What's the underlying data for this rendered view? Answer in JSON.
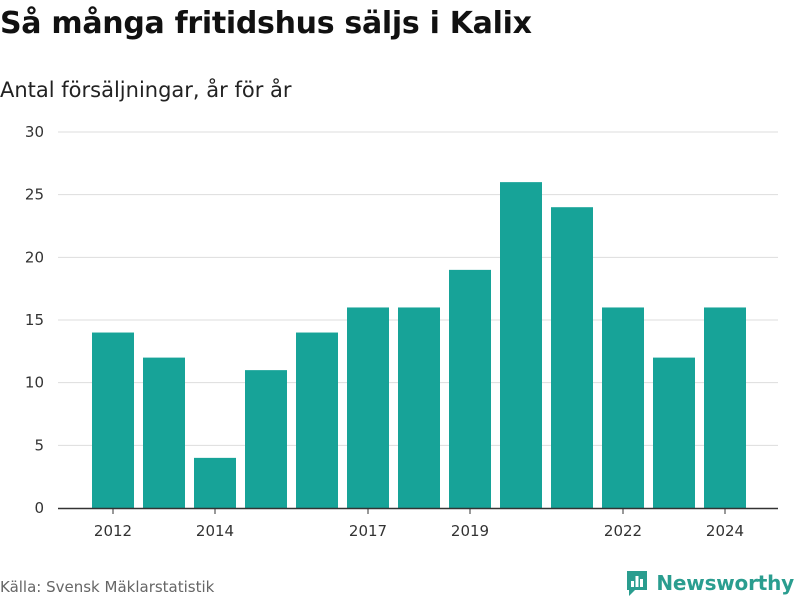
{
  "title": "Så många fritidshus säljs i Kalix",
  "subtitle": "Antal försäljningar, år för år",
  "source": "Källa: Svensk Mäklarstatistik",
  "brand": {
    "name": "Newsworthy",
    "icon": "bar-chart-logo-icon",
    "color": "#2a9d8f"
  },
  "colors": {
    "bar": "#17a398",
    "grid": "#dddddd",
    "axis": "#333333"
  },
  "chart_data": {
    "type": "bar",
    "title": "Så många fritidshus säljs i Kalix",
    "subtitle": "Antal försäljningar, år för år",
    "xlabel": "",
    "ylabel": "",
    "x": [
      2012,
      2013,
      2014,
      2015,
      2016,
      2017,
      2018,
      2019,
      2020,
      2021,
      2022,
      2023,
      2024
    ],
    "values": [
      14,
      12,
      4,
      11,
      14,
      16,
      16,
      19,
      26,
      24,
      16,
      12,
      16
    ],
    "x_tick_labels": [
      "2012",
      "2014",
      "2017",
      "2019",
      "2022",
      "2024"
    ],
    "y_ticks": [
      0,
      5,
      10,
      15,
      20,
      25,
      30
    ],
    "ylim": [
      0,
      30
    ],
    "grid": true,
    "legend": "none"
  }
}
